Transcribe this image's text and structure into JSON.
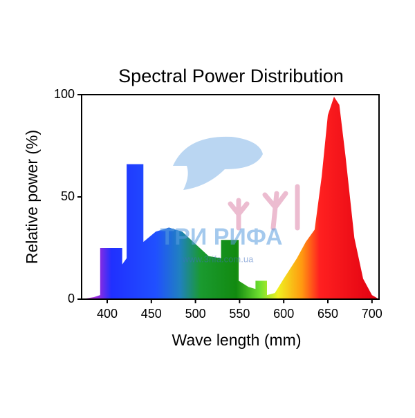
{
  "chart_data": {
    "type": "area",
    "title": "Spectral Power Distribution",
    "x_label": "Wave length (mm)",
    "y_label": "Relative power (%)",
    "watermark": [
      "ТРИ РИФА",
      "www.3rifa.com.ua"
    ],
    "x": [
      371,
      385,
      392,
      392,
      417,
      417,
      422,
      422,
      441,
      441,
      455,
      470,
      485,
      500,
      515,
      529,
      529,
      549,
      549,
      560,
      568,
      568,
      581,
      581,
      590,
      600,
      615,
      625,
      635,
      643,
      650,
      657,
      663,
      670,
      680,
      690,
      700,
      708
    ],
    "values": [
      0,
      1,
      2,
      25,
      25,
      17,
      20,
      66,
      66,
      28,
      33,
      35,
      33,
      27,
      21,
      20,
      29,
      29,
      9,
      6,
      5,
      9,
      9,
      2,
      3,
      10,
      20,
      28,
      34,
      60,
      90,
      99,
      95,
      70,
      30,
      10,
      2,
      0
    ],
    "xlim": [
      371,
      708
    ],
    "ylim": [
      0,
      100
    ],
    "xticks": [
      400,
      450,
      500,
      550,
      600,
      650,
      700
    ],
    "yticks": [
      0,
      50,
      100
    ]
  }
}
